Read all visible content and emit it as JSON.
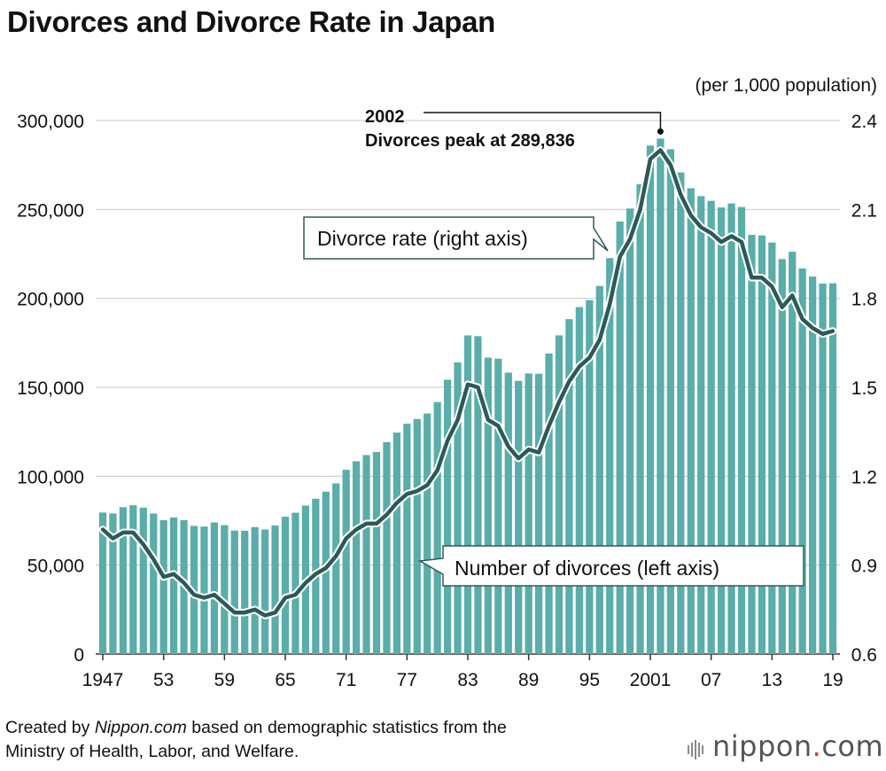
{
  "header": {
    "title": "Divorces and Divorce Rate in Japan"
  },
  "footer": {
    "source_prefix": "Created by ",
    "source_italic": "Nippon.com",
    "source_rest": " based on demographic statistics from the",
    "source_line2": "Ministry of Health, Labor, and Welfare.",
    "logo_text": "nippon",
    "logo_dot": ".",
    "logo_tld": "com"
  },
  "chart_data": {
    "type": "bar+line",
    "title": "Divorces and Divorce Rate in Japan",
    "x": [
      1947,
      1948,
      1949,
      1950,
      1951,
      1952,
      1953,
      1954,
      1955,
      1956,
      1957,
      1958,
      1959,
      1960,
      1961,
      1962,
      1963,
      1964,
      1965,
      1966,
      1967,
      1968,
      1969,
      1970,
      1971,
      1972,
      1973,
      1974,
      1975,
      1976,
      1977,
      1978,
      1979,
      1980,
      1981,
      1982,
      1983,
      1984,
      1985,
      1986,
      1987,
      1988,
      1989,
      1990,
      1991,
      1992,
      1993,
      1994,
      1995,
      1996,
      1997,
      1998,
      1999,
      2000,
      2001,
      2002,
      2003,
      2004,
      2005,
      2006,
      2007,
      2008,
      2009,
      2010,
      2011,
      2012,
      2013,
      2014,
      2015,
      2016,
      2017,
      2018,
      2019
    ],
    "x_tick_labels": [
      "1947",
      "53",
      "59",
      "65",
      "71",
      "77",
      "83",
      "89",
      "95",
      "2001",
      "07",
      "13",
      "19"
    ],
    "x_tick_years": [
      1947,
      1953,
      1959,
      1965,
      1971,
      1977,
      1983,
      1989,
      1995,
      2001,
      2007,
      2013,
      2019
    ],
    "series": [
      {
        "name": "Number of divorces (left axis)",
        "axis": "left",
        "kind": "bar",
        "color": "#5aada9",
        "values": [
          79551,
          79032,
          82575,
          83689,
          82331,
          79021,
          75267,
          76759,
          75267,
          72040,
          71651,
          74004,
          72455,
          69410,
          69323,
          71394,
          69996,
          72306,
          77195,
          79432,
          83478,
          87327,
          91280,
          95937,
          103595,
          108382,
          111877,
          113622,
          119135,
          124512,
          129485,
          132146,
          135250,
          141689,
          154221,
          163980,
          179150,
          178746,
          166640,
          166054,
          158227,
          153600,
          157811,
          157608,
          168969,
          179191,
          188297,
          195106,
          199016,
          206955,
          222635,
          243183,
          250529,
          264246,
          285911,
          289836,
          283854,
          270804,
          261917,
          257475,
          254832,
          251136,
          253353,
          251378,
          235719,
          235406,
          231383,
          222107,
          226215,
          216798,
          212262,
          208333,
          208496
        ],
        "label_callout": "Number of divorces (left axis)"
      },
      {
        "name": "Divorce rate (right axis)",
        "axis": "right",
        "kind": "line",
        "color": "#2d5a57",
        "values": [
          1.02,
          0.99,
          1.01,
          1.01,
          0.97,
          0.92,
          0.86,
          0.87,
          0.84,
          0.8,
          0.79,
          0.8,
          0.77,
          0.74,
          0.74,
          0.75,
          0.73,
          0.74,
          0.79,
          0.8,
          0.84,
          0.87,
          0.89,
          0.93,
          0.99,
          1.02,
          1.04,
          1.04,
          1.07,
          1.11,
          1.14,
          1.15,
          1.17,
          1.22,
          1.32,
          1.39,
          1.51,
          1.5,
          1.39,
          1.37,
          1.3,
          1.26,
          1.29,
          1.28,
          1.37,
          1.45,
          1.52,
          1.57,
          1.6,
          1.66,
          1.78,
          1.94,
          2.0,
          2.1,
          2.27,
          2.3,
          2.25,
          2.15,
          2.08,
          2.04,
          2.02,
          1.99,
          2.01,
          1.99,
          1.87,
          1.87,
          1.84,
          1.77,
          1.81,
          1.73,
          1.7,
          1.68,
          1.69
        ],
        "label_callout": "Divorce rate (right axis)"
      }
    ],
    "y_left": {
      "min": 0,
      "max": 300000,
      "ticks": [
        0,
        50000,
        100000,
        150000,
        200000,
        250000,
        300000
      ],
      "tick_labels": [
        "0",
        "50,000",
        "100,000",
        "150,000",
        "200,000",
        "250,000",
        "300,000"
      ]
    },
    "y_right": {
      "min": 0.6,
      "max": 2.4,
      "ticks": [
        0.6,
        0.9,
        1.2,
        1.5,
        1.8,
        2.1,
        2.4
      ],
      "tick_labels": [
        "0.6",
        "0.9",
        "1.2",
        "1.5",
        "1.8",
        "2.1",
        "2.4"
      ],
      "unit": "(per 1,000 population)"
    },
    "annotation": {
      "year": 2002,
      "line1": "2002",
      "line2": "Divorces peak at 289,836"
    },
    "grid": "horizontal",
    "legend": "callouts"
  }
}
